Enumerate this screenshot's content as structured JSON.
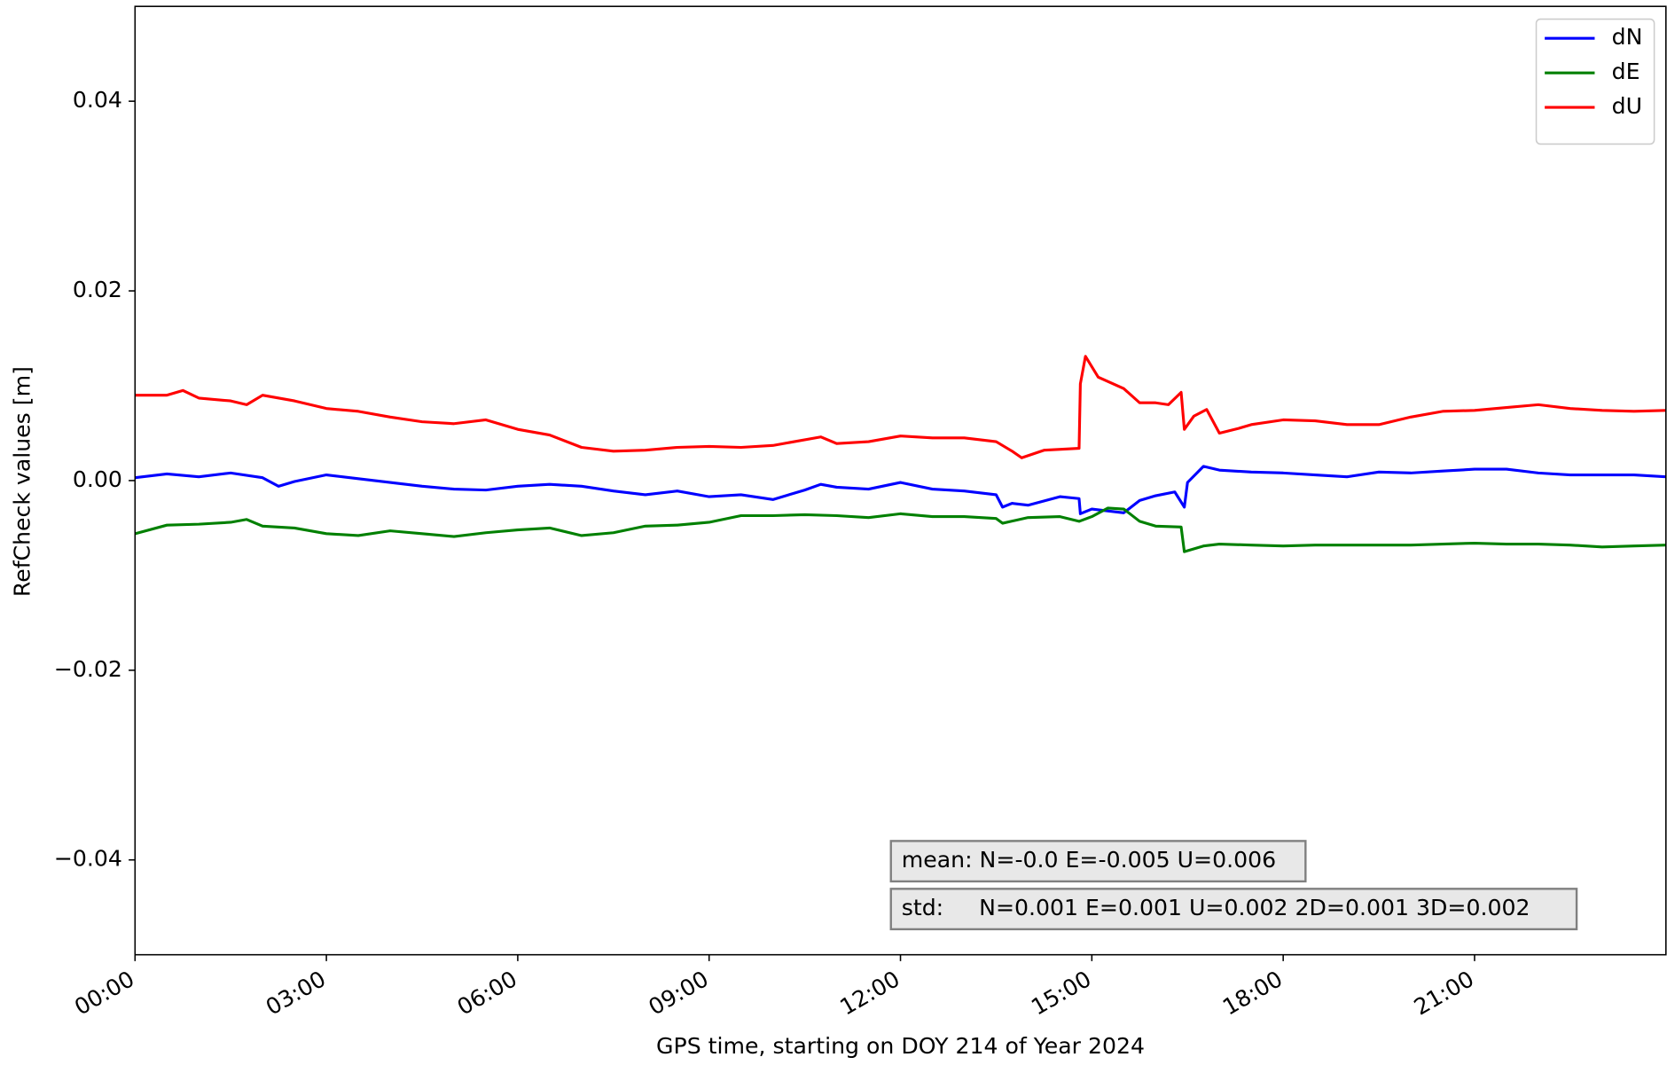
{
  "chart_data": {
    "type": "line",
    "xlabel": "GPS time, starting on DOY 214 of Year 2024",
    "ylabel": "RefCheck values [m]",
    "xlim": [
      0,
      24
    ],
    "ylim": [
      -0.05,
      0.05
    ],
    "xticks": [
      {
        "value": 0,
        "label": "00:00"
      },
      {
        "value": 3,
        "label": "03:00"
      },
      {
        "value": 6,
        "label": "06:00"
      },
      {
        "value": 9,
        "label": "09:00"
      },
      {
        "value": 12,
        "label": "12:00"
      },
      {
        "value": 15,
        "label": "15:00"
      },
      {
        "value": 18,
        "label": "18:00"
      },
      {
        "value": 21,
        "label": "21:00"
      }
    ],
    "yticks": [
      {
        "value": -0.04,
        "label": "−0.04"
      },
      {
        "value": -0.02,
        "label": "−0.02"
      },
      {
        "value": 0,
        "label": "0.00"
      },
      0.02,
      0.04
    ],
    "grid": false,
    "legend": "upper right",
    "annotations": [
      "mean: N=-0.0 E=-0.005 U=0.006",
      "std:     N=0.001 E=0.001 U=0.002 2D=0.001 3D=0.002"
    ],
    "series": [
      {
        "name": "dN",
        "color": "#0000ff",
        "x": [
          0,
          0.5,
          1,
          1.5,
          2,
          2.25,
          2.5,
          3,
          3.5,
          4,
          4.5,
          5,
          5.5,
          6,
          6.5,
          7,
          7.5,
          8,
          8.5,
          9,
          9.5,
          10,
          10.5,
          10.75,
          11,
          11.5,
          12,
          12.5,
          13,
          13.5,
          13.6,
          13.75,
          14,
          14.5,
          14.8,
          14.82,
          15,
          15.5,
          15.75,
          16,
          16.3,
          16.45,
          16.5,
          16.75,
          17,
          17.5,
          18,
          18.5,
          19,
          19.5,
          20,
          20.5,
          21,
          21.5,
          22,
          22.5,
          23,
          23.5,
          24
        ],
        "values": [
          0.0003,
          0.0007,
          0.0004,
          0.0008,
          0.0003,
          -0.0006,
          -0.0001,
          0.0006,
          0.0002,
          -0.0002,
          -0.0006,
          -0.0009,
          -0.001,
          -0.0006,
          -0.0004,
          -0.0006,
          -0.0011,
          -0.0015,
          -0.0011,
          -0.0017,
          -0.0015,
          -0.002,
          -0.001,
          -0.0004,
          -0.0007,
          -0.0009,
          -0.0002,
          -0.0009,
          -0.0011,
          -0.0015,
          -0.0028,
          -0.0024,
          -0.0026,
          -0.0017,
          -0.0019,
          -0.0035,
          -0.003,
          -0.0034,
          -0.0021,
          -0.0016,
          -0.0012,
          -0.0028,
          -0.0002,
          0.0015,
          0.0011,
          0.0009,
          0.0008,
          0.0006,
          0.0004,
          0.0009,
          0.0008,
          0.001,
          0.0012,
          0.0012,
          0.0008,
          0.0006,
          0.0006,
          0.0006,
          0.0004
        ]
      },
      {
        "name": "dE",
        "color": "#008000",
        "x": [
          0,
          0.5,
          1,
          1.5,
          1.75,
          2,
          2.5,
          3,
          3.5,
          4,
          4.5,
          5,
          5.5,
          6,
          6.5,
          7,
          7.5,
          8,
          8.5,
          9,
          9.5,
          10,
          10.5,
          11,
          11.5,
          12,
          12.5,
          13,
          13.5,
          13.6,
          14,
          14.5,
          14.8,
          15,
          15.25,
          15.5,
          15.75,
          16,
          16.4,
          16.45,
          16.75,
          17,
          17.5,
          18,
          18.5,
          19,
          19.5,
          20,
          20.5,
          21,
          21.5,
          22,
          22.5,
          23,
          23.5,
          24
        ],
        "values": [
          -0.0056,
          -0.0047,
          -0.0046,
          -0.0044,
          -0.0041,
          -0.0048,
          -0.005,
          -0.0056,
          -0.0058,
          -0.0053,
          -0.0056,
          -0.0059,
          -0.0055,
          -0.0052,
          -0.005,
          -0.0058,
          -0.0055,
          -0.0048,
          -0.0047,
          -0.0044,
          -0.0037,
          -0.0037,
          -0.0036,
          -0.0037,
          -0.0039,
          -0.0035,
          -0.0038,
          -0.0038,
          -0.004,
          -0.0045,
          -0.0039,
          -0.0038,
          -0.0043,
          -0.0038,
          -0.0029,
          -0.003,
          -0.0043,
          -0.0048,
          -0.0049,
          -0.0075,
          -0.0069,
          -0.0067,
          -0.0068,
          -0.0069,
          -0.0068,
          -0.0068,
          -0.0068,
          -0.0068,
          -0.0067,
          -0.0066,
          -0.0067,
          -0.0067,
          -0.0068,
          -0.007,
          -0.0069,
          -0.0068
        ]
      },
      {
        "name": "dU",
        "color": "#ff0000",
        "x": [
          0,
          0.5,
          0.75,
          1,
          1.5,
          1.75,
          2,
          2.5,
          3,
          3.5,
          4,
          4.5,
          5,
          5.5,
          6,
          6.5,
          7,
          7.5,
          8,
          8.5,
          9,
          9.5,
          10,
          10.75,
          11,
          11.5,
          12,
          12.5,
          13,
          13.5,
          13.75,
          13.9,
          14.25,
          14.8,
          14.82,
          14.9,
          15.1,
          15.5,
          15.75,
          16,
          16.2,
          16.4,
          16.45,
          16.6,
          16.8,
          17,
          17.3,
          17.5,
          18,
          18.5,
          19,
          19.5,
          20,
          20.5,
          21,
          21.5,
          22,
          22.5,
          23,
          23.5,
          24
        ],
        "values": [
          0.009,
          0.009,
          0.0095,
          0.0087,
          0.0084,
          0.008,
          0.009,
          0.0084,
          0.0076,
          0.0073,
          0.0067,
          0.0062,
          0.006,
          0.0064,
          0.0054,
          0.0048,
          0.0035,
          0.0031,
          0.0032,
          0.0035,
          0.0036,
          0.0035,
          0.0037,
          0.0046,
          0.0039,
          0.0041,
          0.0047,
          0.0045,
          0.0045,
          0.0041,
          0.0031,
          0.0024,
          0.0032,
          0.0034,
          0.0102,
          0.0131,
          0.0109,
          0.0097,
          0.0082,
          0.0082,
          0.008,
          0.0093,
          0.0054,
          0.0068,
          0.0075,
          0.005,
          0.0055,
          0.0059,
          0.0064,
          0.0063,
          0.0059,
          0.0059,
          0.0067,
          0.0073,
          0.0074,
          0.0077,
          0.008,
          0.0076,
          0.0074,
          0.0073,
          0.0074
        ]
      }
    ]
  }
}
